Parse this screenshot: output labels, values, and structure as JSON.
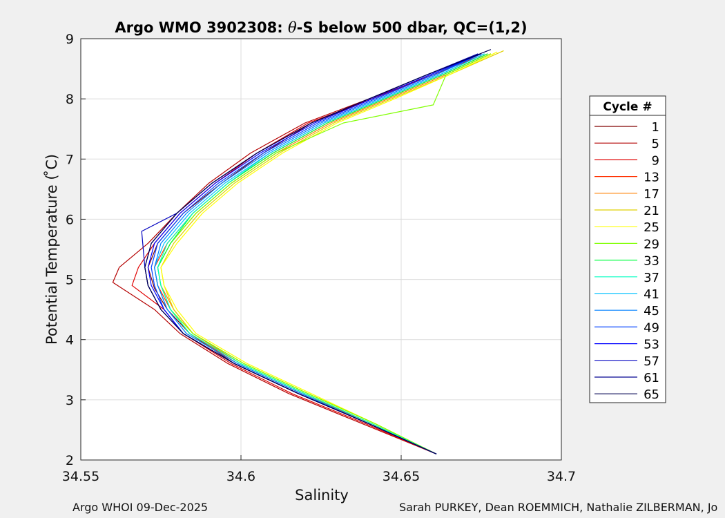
{
  "chart_data": {
    "type": "line",
    "title_prefix": "Argo WMO 3902308: ",
    "title_symbol": "θ",
    "title_suffix": "-S below 500 dbar,  QC=(1,2)",
    "xlabel": "Salinity",
    "ylabel": "Potential Temperature ( ̊C)",
    "xlim": [
      34.55,
      34.7
    ],
    "ylim": [
      2,
      9
    ],
    "xticks": [
      34.55,
      34.6,
      34.65,
      34.7
    ],
    "xtick_labels": [
      "34.55",
      "34.6",
      "34.65",
      "34.7"
    ],
    "yticks": [
      2,
      3,
      4,
      5,
      6,
      7,
      8,
      9
    ],
    "ytick_labels": [
      "2",
      "3",
      "4",
      "5",
      "6",
      "7",
      "8",
      "9"
    ],
    "grid": true,
    "legend_title": "Cycle #",
    "legend_position": "right",
    "series": [
      {
        "name": "1",
        "color": "#800000",
        "x": [
          34.661,
          34.64,
          34.618,
          34.598,
          34.584,
          34.577,
          34.573,
          34.571,
          34.574,
          34.582,
          34.594,
          34.607,
          34.622,
          34.641,
          34.66,
          34.675
        ],
        "y": [
          2.1,
          2.6,
          3.1,
          3.6,
          4.1,
          4.5,
          4.85,
          5.2,
          5.6,
          6.1,
          6.6,
          7.1,
          7.6,
          8.0,
          8.4,
          8.75
        ]
      },
      {
        "name": "5",
        "color": "#b40000",
        "x": [
          34.661,
          34.638,
          34.615,
          34.596,
          34.581,
          34.573,
          34.56,
          34.562,
          34.571,
          34.58,
          34.59,
          34.603,
          34.62,
          34.64,
          34.66,
          34.674
        ],
        "y": [
          2.1,
          2.6,
          3.1,
          3.6,
          4.1,
          4.5,
          4.95,
          5.2,
          5.6,
          6.1,
          6.6,
          7.1,
          7.6,
          8.0,
          8.4,
          8.7
        ]
      },
      {
        "name": "9",
        "color": "#e00000",
        "x": [
          34.661,
          34.639,
          34.616,
          34.597,
          34.582,
          34.576,
          34.566,
          34.568,
          34.573,
          34.581,
          34.592,
          34.605,
          34.621,
          34.641,
          34.66,
          34.675
        ],
        "y": [
          2.1,
          2.6,
          3.1,
          3.6,
          4.1,
          4.5,
          4.9,
          5.2,
          5.6,
          6.1,
          6.6,
          7.1,
          7.6,
          8.0,
          8.4,
          8.72
        ]
      },
      {
        "name": "13",
        "color": "#ff3000",
        "x": [
          34.661,
          34.641,
          34.619,
          34.599,
          34.584,
          34.578,
          34.574,
          34.573,
          34.577,
          34.585,
          34.596,
          34.61,
          34.627,
          34.645,
          34.663,
          34.677
        ],
        "y": [
          2.1,
          2.6,
          3.1,
          3.6,
          4.1,
          4.5,
          4.9,
          5.2,
          5.6,
          6.1,
          6.6,
          7.1,
          7.6,
          8.0,
          8.4,
          8.75
        ]
      },
      {
        "name": "17",
        "color": "#ff8000",
        "x": [
          34.661,
          34.641,
          34.62,
          34.6,
          34.585,
          34.579,
          34.575,
          34.574,
          34.578,
          34.586,
          34.597,
          34.611,
          34.628,
          34.646,
          34.664,
          34.678
        ],
        "y": [
          2.1,
          2.6,
          3.1,
          3.6,
          4.1,
          4.5,
          4.9,
          5.2,
          5.6,
          6.1,
          6.6,
          7.1,
          7.6,
          8.0,
          8.4,
          8.75
        ]
      },
      {
        "name": "21",
        "color": "#e0d000",
        "x": [
          34.661,
          34.642,
          34.621,
          34.601,
          34.585,
          34.579,
          34.576,
          34.575,
          34.579,
          34.587,
          34.598,
          34.612,
          34.629,
          34.647,
          34.665,
          34.682
        ],
        "y": [
          2.1,
          2.6,
          3.1,
          3.6,
          4.1,
          4.5,
          4.9,
          5.2,
          5.6,
          6.1,
          6.6,
          7.1,
          7.6,
          8.0,
          8.4,
          8.8
        ]
      },
      {
        "name": "25",
        "color": "#ffff00",
        "x": [
          34.661,
          34.642,
          34.622,
          34.602,
          34.586,
          34.58,
          34.576,
          34.575,
          34.58,
          34.588,
          34.599,
          34.613,
          34.63,
          34.648,
          34.665,
          34.68
        ],
        "y": [
          2.1,
          2.6,
          3.1,
          3.6,
          4.1,
          4.5,
          4.9,
          5.2,
          5.6,
          6.1,
          6.6,
          7.1,
          7.6,
          8.0,
          8.4,
          8.78
        ]
      },
      {
        "name": "29",
        "color": "#80ff00",
        "x": [
          34.661,
          34.642,
          34.621,
          34.601,
          34.585,
          34.578,
          34.575,
          34.574,
          34.578,
          34.586,
          34.597,
          34.611,
          34.632,
          34.66,
          34.664,
          34.678
        ],
        "y": [
          2.1,
          2.6,
          3.1,
          3.6,
          4.1,
          4.5,
          4.9,
          5.2,
          5.6,
          6.1,
          6.6,
          7.1,
          7.6,
          7.9,
          8.4,
          8.75
        ]
      },
      {
        "name": "33",
        "color": "#00ff40",
        "x": [
          34.661,
          34.641,
          34.62,
          34.6,
          34.584,
          34.578,
          34.575,
          34.574,
          34.578,
          34.585,
          34.596,
          34.61,
          34.627,
          34.645,
          34.663,
          34.677
        ],
        "y": [
          2.1,
          2.6,
          3.1,
          3.6,
          4.1,
          4.5,
          4.9,
          5.2,
          5.6,
          6.1,
          6.6,
          7.1,
          7.6,
          8.0,
          8.4,
          8.75
        ]
      },
      {
        "name": "37",
        "color": "#00ffc0",
        "x": [
          34.661,
          34.641,
          34.62,
          34.6,
          34.584,
          34.578,
          34.575,
          34.574,
          34.577,
          34.585,
          34.596,
          34.609,
          34.626,
          34.644,
          34.662,
          34.676
        ],
        "y": [
          2.1,
          2.6,
          3.1,
          3.6,
          4.1,
          4.5,
          4.9,
          5.2,
          5.6,
          6.1,
          6.6,
          7.1,
          7.6,
          8.0,
          8.4,
          8.75
        ]
      },
      {
        "name": "41",
        "color": "#00c0ff",
        "x": [
          34.661,
          34.64,
          34.619,
          34.599,
          34.583,
          34.577,
          34.574,
          34.573,
          34.576,
          34.584,
          34.595,
          34.609,
          34.626,
          34.644,
          34.662,
          34.676
        ],
        "y": [
          2.1,
          2.6,
          3.1,
          3.6,
          4.1,
          4.5,
          4.9,
          5.2,
          5.6,
          6.1,
          6.6,
          7.1,
          7.6,
          8.0,
          8.4,
          8.75
        ]
      },
      {
        "name": "45",
        "color": "#0080ff",
        "x": [
          34.661,
          34.64,
          34.619,
          34.599,
          34.583,
          34.577,
          34.574,
          34.573,
          34.575,
          34.583,
          34.594,
          34.608,
          34.625,
          34.643,
          34.661,
          34.675
        ],
        "y": [
          2.1,
          2.6,
          3.1,
          3.6,
          4.1,
          4.5,
          4.9,
          5.2,
          5.6,
          6.1,
          6.6,
          7.1,
          7.6,
          8.0,
          8.4,
          8.75
        ]
      },
      {
        "name": "49",
        "color": "#0040ff",
        "x": [
          34.661,
          34.64,
          34.618,
          34.598,
          34.582,
          34.576,
          34.573,
          34.572,
          34.574,
          34.582,
          34.593,
          34.607,
          34.624,
          34.642,
          34.66,
          34.675
        ],
        "y": [
          2.1,
          2.6,
          3.1,
          3.6,
          4.1,
          4.5,
          4.9,
          5.2,
          5.6,
          6.1,
          6.6,
          7.1,
          7.6,
          8.0,
          8.4,
          8.75
        ]
      },
      {
        "name": "53",
        "color": "#0000ff",
        "x": [
          34.661,
          34.64,
          34.618,
          34.598,
          34.582,
          34.576,
          34.572,
          34.571,
          34.573,
          34.581,
          34.592,
          34.606,
          34.623,
          34.641,
          34.659,
          34.675
        ],
        "y": [
          2.1,
          2.6,
          3.1,
          3.6,
          4.1,
          4.5,
          4.9,
          5.2,
          5.6,
          6.1,
          6.6,
          7.1,
          7.6,
          8.0,
          8.4,
          8.75
        ]
      },
      {
        "name": "57",
        "color": "#0000c0",
        "x": [
          34.661,
          34.64,
          34.618,
          34.598,
          34.582,
          34.575,
          34.571,
          34.57,
          34.569,
          34.58,
          34.591,
          34.605,
          34.622,
          34.64,
          34.658,
          34.674
        ],
        "y": [
          2.1,
          2.6,
          3.1,
          3.6,
          4.1,
          4.5,
          4.9,
          5.2,
          5.8,
          6.1,
          6.6,
          7.1,
          7.6,
          8.0,
          8.4,
          8.75
        ]
      },
      {
        "name": "61",
        "color": "#000090",
        "x": [
          34.661,
          34.64,
          34.618,
          34.598,
          34.582,
          34.575,
          34.571,
          34.57,
          34.572,
          34.58,
          34.591,
          34.605,
          34.622,
          34.64,
          34.658,
          34.675
        ],
        "y": [
          2.1,
          2.6,
          3.1,
          3.6,
          4.1,
          4.5,
          4.9,
          5.2,
          5.6,
          6.1,
          6.6,
          7.1,
          7.6,
          8.0,
          8.4,
          8.75
        ]
      },
      {
        "name": "65",
        "color": "#000050",
        "x": [
          34.661,
          34.64,
          34.618,
          34.598,
          34.582,
          34.575,
          34.571,
          34.57,
          34.572,
          34.58,
          34.591,
          34.605,
          34.622,
          34.64,
          34.658,
          34.678
        ],
        "y": [
          2.1,
          2.6,
          3.1,
          3.6,
          4.1,
          4.5,
          4.9,
          5.2,
          5.6,
          6.1,
          6.6,
          7.1,
          7.6,
          8.0,
          8.4,
          8.82
        ]
      }
    ]
  },
  "footer": {
    "left": "Argo WHOI 09-Dec-2025",
    "right": "Sarah PURKEY, Dean ROEMMICH, Nathalie ZILBERMAN, Jo"
  }
}
